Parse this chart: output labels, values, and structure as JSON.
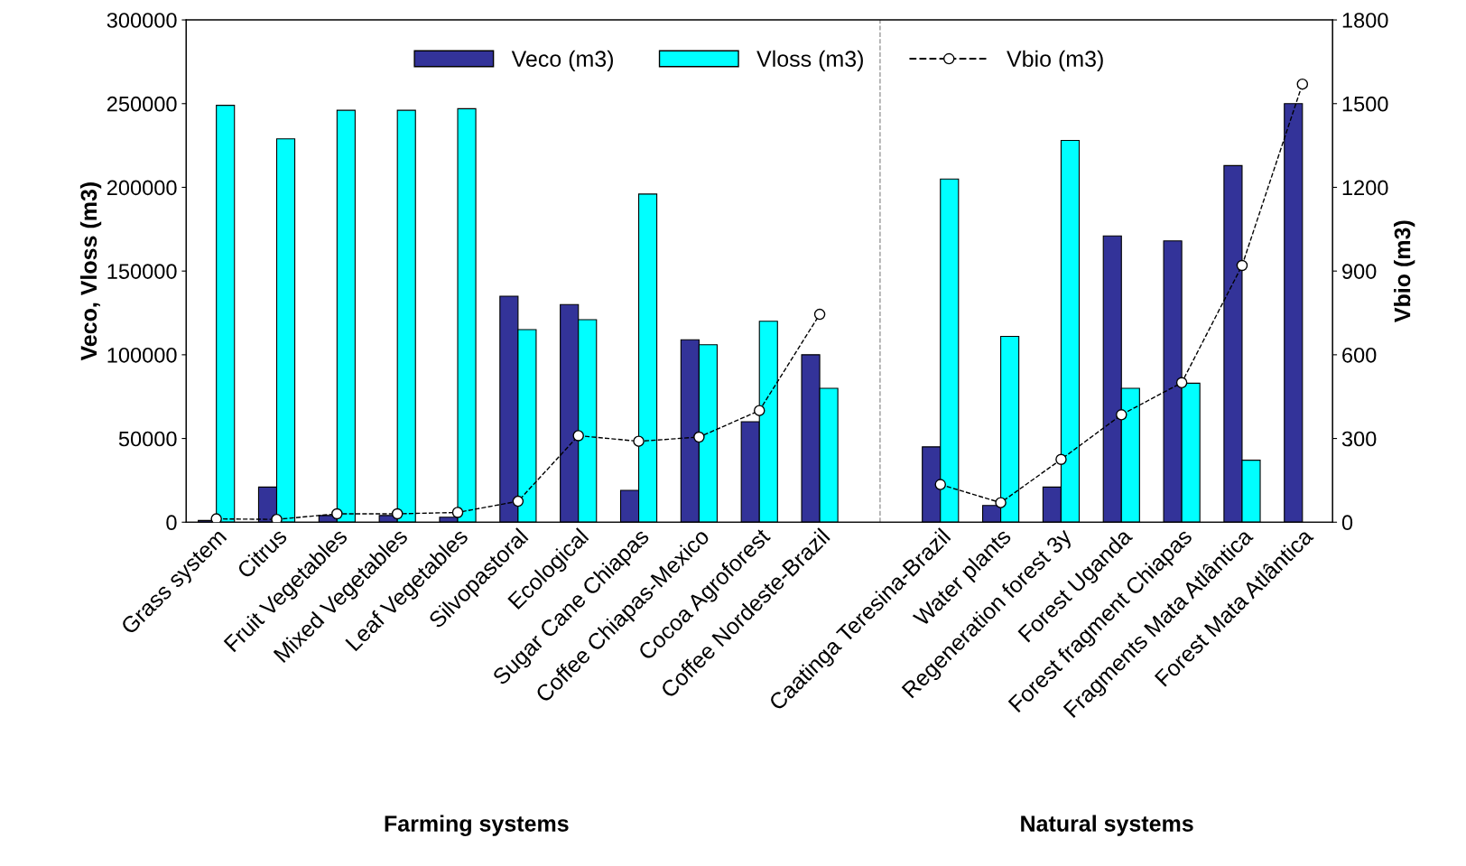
{
  "chart_data": {
    "type": "bar",
    "ylabel": "Veco, Vloss (m3)",
    "y2label": "Vbio (m3)",
    "categories": [
      "Grass system",
      "Citrus",
      "Fruit Vegetables",
      "Mixed Vegetables",
      "Leaf Vegetables",
      "Silvopastoral",
      "Ecological",
      "Sugar Cane Chiapas",
      "Coffee Chiapas-Mexico",
      "Cocoa Agroforest",
      "Coffee Nordeste-Brazil",
      null,
      "Caatinga Teresina-Brazil",
      "Water plants",
      "Regeneration forest 3y",
      "Forest Uganda",
      "Forest fragment Chiapas",
      "Fragments Mata Atlântica",
      "Forest Mata Atlântica"
    ],
    "series": [
      {
        "name": "Veco (m3)",
        "color": "#333399",
        "values": [
          1000,
          21000,
          4000,
          4000,
          3000,
          135000,
          130000,
          19000,
          109000,
          60000,
          100000,
          null,
          45000,
          10000,
          21000,
          171000,
          168000,
          213000,
          250000
        ]
      },
      {
        "name": "Vloss (m3)",
        "color": "#00ffff",
        "values": [
          249000,
          229000,
          246000,
          246000,
          247000,
          115000,
          121000,
          196000,
          106000,
          120000,
          80000,
          null,
          205000,
          111000,
          228000,
          80000,
          83000,
          37000,
          null
        ]
      },
      {
        "name": "Vbio (m3)",
        "type": "line",
        "axis": "y2",
        "color": "#000000",
        "marker": "circle",
        "line_style": "dashed",
        "values": [
          12,
          10,
          30,
          30,
          35,
          75,
          310,
          290,
          305,
          400,
          745,
          null,
          135,
          70,
          225,
          385,
          500,
          920,
          1570
        ]
      }
    ],
    "ylim": [
      0,
      300000
    ],
    "yticks": [
      0,
      50000,
      100000,
      150000,
      200000,
      250000,
      300000
    ],
    "y2lim": [
      0,
      1800
    ],
    "y2ticks": [
      0,
      300,
      600,
      900,
      1200,
      1500,
      1800
    ],
    "annotations": [
      "Farming systems",
      "Natural systems"
    ],
    "legend": "top"
  }
}
